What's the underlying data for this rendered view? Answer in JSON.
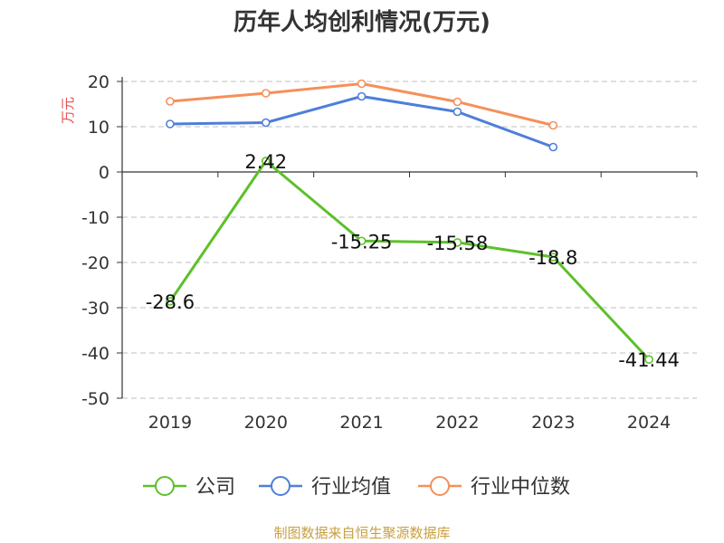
{
  "title": "历年人均创利情况(万元)",
  "footer": "制图数据来自恒生聚源数据库",
  "chart_data": {
    "type": "line",
    "title": "历年人均创利情况(万元)",
    "ylabel": "万元",
    "xlabel": "",
    "categories": [
      "2019",
      "2020",
      "2021",
      "2022",
      "2023",
      "2024"
    ],
    "ylim": [
      -50,
      20
    ],
    "yticks": [
      20,
      10,
      0,
      -10,
      -20,
      -30,
      -40,
      -50
    ],
    "grid": true,
    "legend_position": "bottom",
    "series": [
      {
        "name": "公司",
        "color": "#5dc02a",
        "values": [
          -28.6,
          2.42,
          -15.25,
          -15.58,
          -18.8,
          -41.44
        ],
        "labels": [
          "-28.6",
          "2.42",
          "-15.25",
          "-15.58",
          "-18.8",
          "-41.44"
        ]
      },
      {
        "name": "行业均值",
        "color": "#4e7fd8",
        "values": [
          10.6,
          10.9,
          16.7,
          13.3,
          5.5,
          null
        ]
      },
      {
        "name": "行业中位数",
        "color": "#f5905a",
        "values": [
          15.6,
          17.4,
          19.5,
          15.5,
          10.3,
          null
        ]
      }
    ]
  }
}
